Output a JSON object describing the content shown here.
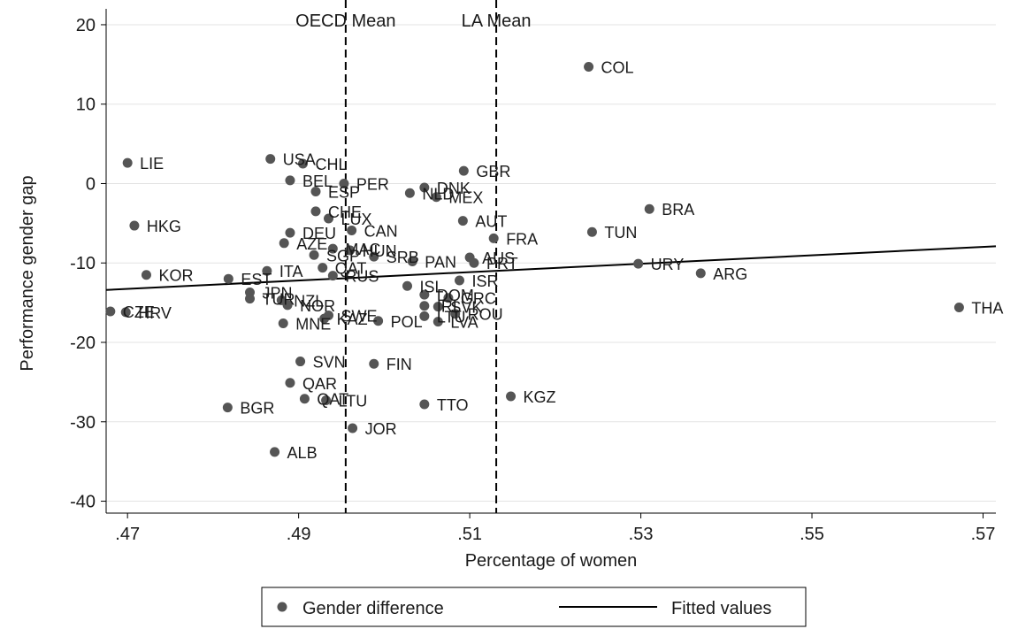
{
  "chart_data": {
    "type": "scatter",
    "xlabel": "Percentage of women",
    "ylabel": "Performance gender gap",
    "xlim": [
      0.4675,
      0.5715
    ],
    "ylim": [
      -41.5,
      22
    ],
    "x_ticks": [
      {
        "value": 0.47,
        "label": ".47"
      },
      {
        "value": 0.49,
        "label": ".49"
      },
      {
        "value": 0.51,
        "label": ".51"
      },
      {
        "value": 0.53,
        "label": ".53"
      },
      {
        "value": 0.55,
        "label": ".55"
      },
      {
        "value": 0.57,
        "label": ".57"
      }
    ],
    "y_ticks": [
      {
        "value": 20,
        "label": "20"
      },
      {
        "value": 10,
        "label": "10"
      },
      {
        "value": 0,
        "label": "0"
      },
      {
        "value": -10,
        "label": "-10"
      },
      {
        "value": -20,
        "label": "-20"
      },
      {
        "value": -30,
        "label": "-30"
      },
      {
        "value": -40,
        "label": "-40"
      }
    ],
    "grid": "horizontal",
    "reference_lines": [
      {
        "label": "OECD Mean",
        "x": 0.4955,
        "style": "dashed"
      },
      {
        "label": "LA Mean",
        "x": 0.5131,
        "style": "dashed"
      }
    ],
    "series": [
      {
        "name": "Gender difference",
        "marker": "circle",
        "color": "#555555",
        "points": [
          {
            "label": "COL",
            "x": 0.5239,
            "y": 14.7
          },
          {
            "label": "LIE",
            "x": 0.47,
            "y": 2.6
          },
          {
            "label": "USA",
            "x": 0.4867,
            "y": 3.1
          },
          {
            "label": "CHL",
            "x": 0.4905,
            "y": 2.5
          },
          {
            "label": "GBR",
            "x": 0.5093,
            "y": 1.6
          },
          {
            "label": "BEL",
            "x": 0.489,
            "y": 0.4
          },
          {
            "label": "PER",
            "x": 0.4953,
            "y": 0.0
          },
          {
            "label": "ESP",
            "x": 0.492,
            "y": -1.0
          },
          {
            "label": "DNK",
            "x": 0.5047,
            "y": -0.5
          },
          {
            "label": "NLD",
            "x": 0.503,
            "y": -1.2
          },
          {
            "label": "MEX",
            "x": 0.5061,
            "y": -1.7
          },
          {
            "label": "BRA",
            "x": 0.531,
            "y": -3.2
          },
          {
            "label": "CHE",
            "x": 0.492,
            "y": -3.5
          },
          {
            "label": "LUX",
            "x": 0.4935,
            "y": -4.4
          },
          {
            "label": "AUT",
            "x": 0.5092,
            "y": -4.7
          },
          {
            "label": "HKG",
            "x": 0.4708,
            "y": -5.3
          },
          {
            "label": "CAN",
            "x": 0.4962,
            "y": -5.9
          },
          {
            "label": "TUN",
            "x": 0.5243,
            "y": -6.1
          },
          {
            "label": "DEU",
            "x": 0.489,
            "y": -6.2
          },
          {
            "label": "FRA",
            "x": 0.5128,
            "y": -6.9
          },
          {
            "label": "AZE",
            "x": 0.4883,
            "y": -7.5
          },
          {
            "label": "MAC",
            "x": 0.494,
            "y": -8.2
          },
          {
            "label": "HUN",
            "x": 0.496,
            "y": -8.4
          },
          {
            "label": "SGP",
            "x": 0.4918,
            "y": -9.0
          },
          {
            "label": "SRB",
            "x": 0.4988,
            "y": -9.2
          },
          {
            "label": "AUS",
            "x": 0.51,
            "y": -9.3
          },
          {
            "label": "PAN",
            "x": 0.5033,
            "y": -9.8
          },
          {
            "label": "PRT",
            "x": 0.5105,
            "y": -10.0
          },
          {
            "label": "URY",
            "x": 0.5297,
            "y": -10.1
          },
          {
            "label": "QAT",
            "x": 0.4928,
            "y": -10.6
          },
          {
            "label": "ITA",
            "x": 0.4863,
            "y": -11.0
          },
          {
            "label": "ARG",
            "x": 0.537,
            "y": -11.3
          },
          {
            "label": "KOR",
            "x": 0.4722,
            "y": -11.5
          },
          {
            "label": "RUS",
            "x": 0.494,
            "y": -11.6
          },
          {
            "label": "EST",
            "x": 0.4818,
            "y": -12.0
          },
          {
            "label": "ISR",
            "x": 0.5088,
            "y": -12.2
          },
          {
            "label": "ISL",
            "x": 0.5027,
            "y": -12.9
          },
          {
            "label": "JPN",
            "x": 0.4843,
            "y": -13.7
          },
          {
            "label": "DOM",
            "x": 0.5047,
            "y": -14.0
          },
          {
            "label": "GRC",
            "x": 0.5075,
            "y": -14.4
          },
          {
            "label": "TUR",
            "x": 0.4843,
            "y": -14.5
          },
          {
            "label": "NZL",
            "x": 0.488,
            "y": -14.7
          },
          {
            "label": "NOR",
            "x": 0.4887,
            "y": -15.3
          },
          {
            "label": "IRL",
            "x": 0.5047,
            "y": -15.4
          },
          {
            "label": "SVK",
            "x": 0.5063,
            "y": -15.5
          },
          {
            "label": "THA",
            "x": 0.5672,
            "y": -15.6
          },
          {
            "label": "CZE",
            "x": 0.468,
            "y": -16.1
          },
          {
            "label": "HRV",
            "x": 0.4698,
            "y": -16.2
          },
          {
            "label": "ROU",
            "x": 0.5083,
            "y": -16.4
          },
          {
            "label": "SWE",
            "x": 0.4935,
            "y": -16.6
          },
          {
            "label": "LTU",
            "x": 0.5047,
            "y": -16.7
          },
          {
            "label": "KAZ",
            "x": 0.493,
            "y": -17.0
          },
          {
            "label": "POL",
            "x": 0.4993,
            "y": -17.3
          },
          {
            "label": "LVA",
            "x": 0.5063,
            "y": -17.4
          },
          {
            "label": "MNE",
            "x": 0.4882,
            "y": -17.6
          },
          {
            "label": "SVN",
            "x": 0.4902,
            "y": -22.4
          },
          {
            "label": "FIN",
            "x": 0.4988,
            "y": -22.7
          },
          {
            "label": "QAR",
            "x": 0.489,
            "y": -25.1
          },
          {
            "label": "KGZ",
            "x": 0.5148,
            "y": -26.8
          },
          {
            "label": "QAT",
            "x": 0.4907,
            "y": -27.1
          },
          {
            "label": "LTU",
            "x": 0.4932,
            "y": -27.3
          },
          {
            "label": "TTO",
            "x": 0.5047,
            "y": -27.8
          },
          {
            "label": "BGR",
            "x": 0.4817,
            "y": -28.2
          },
          {
            "label": "JOR",
            "x": 0.4963,
            "y": -30.8
          },
          {
            "label": "ALB",
            "x": 0.4872,
            "y": -33.8
          }
        ]
      },
      {
        "name": "Fitted values",
        "marker": "line",
        "color": "#000000",
        "points": [
          {
            "x": 0.4675,
            "y": -13.4
          },
          {
            "x": 0.5715,
            "y": -7.9
          }
        ]
      }
    ],
    "legend": {
      "placement": "bottom-center",
      "items": [
        {
          "label": "Gender difference",
          "kind": "marker"
        },
        {
          "label": "Fitted values",
          "kind": "line"
        }
      ]
    }
  }
}
